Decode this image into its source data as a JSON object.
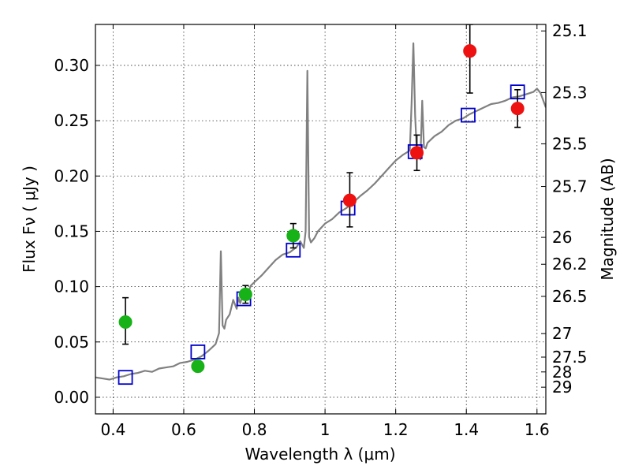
{
  "chart_data": {
    "type": "scatter",
    "title": "",
    "xlabel": "Wavelength  λ (μm)",
    "ylabel": "Flux  Fν  ( μJy )",
    "y2label": "Magnitude (AB)",
    "xlim": [
      0.35,
      1.625
    ],
    "ylim": [
      -0.015,
      0.337
    ],
    "grid": true,
    "xticks": [
      0.4,
      0.6,
      0.8,
      1.0,
      1.2,
      1.4,
      1.6
    ],
    "xtick_labels": [
      "0.4",
      "0.6",
      "0.8",
      "1",
      "1.2",
      "1.4",
      "1.6"
    ],
    "yticks": [
      0.0,
      0.05,
      0.1,
      0.15,
      0.2,
      0.25,
      0.3
    ],
    "ytick_labels": [
      "0.00",
      "0.05",
      "0.10",
      "0.15",
      "0.20",
      "0.25",
      "0.30"
    ],
    "mag_ticks": [
      25.1,
      25.3,
      25.5,
      25.7,
      26,
      26.2,
      26.5,
      27,
      27.5,
      28,
      29
    ],
    "mag_tick_labels": [
      "25.1",
      "25.3",
      "25.5",
      "25.7",
      "26",
      "26.2",
      "26.5",
      "27",
      "27.5",
      "28",
      "29"
    ],
    "colors": {
      "model_line": "#808080",
      "model_points": "#0000cc",
      "optical_obs": "#17b217",
      "nir_obs": "#ee1111",
      "errorbar": "#000000"
    },
    "series": [
      {
        "kind": "line",
        "x": [
          0.35,
          0.37,
          0.39,
          0.41,
          0.43,
          0.45,
          0.47,
          0.49,
          0.51,
          0.53,
          0.55,
          0.57,
          0.59,
          0.61,
          0.63,
          0.65,
          0.67,
          0.69,
          0.7,
          0.705,
          0.71,
          0.715,
          0.72,
          0.73,
          0.74,
          0.75,
          0.755,
          0.76,
          0.77,
          0.78,
          0.79,
          0.8,
          0.82,
          0.84,
          0.86,
          0.88,
          0.9,
          0.92,
          0.93,
          0.94,
          0.945,
          0.95,
          0.955,
          0.96,
          0.97,
          0.98,
          1.0,
          1.02,
          1.04,
          1.06,
          1.08,
          1.1,
          1.12,
          1.14,
          1.16,
          1.18,
          1.2,
          1.22,
          1.24,
          1.245,
          1.25,
          1.255,
          1.26,
          1.27,
          1.275,
          1.28,
          1.285,
          1.29,
          1.31,
          1.33,
          1.35,
          1.37,
          1.39,
          1.41,
          1.43,
          1.45,
          1.47,
          1.49,
          1.51,
          1.53,
          1.55,
          1.57,
          1.59,
          1.6,
          1.61,
          1.625
        ],
        "y": [
          0.018,
          0.017,
          0.016,
          0.018,
          0.019,
          0.021,
          0.022,
          0.024,
          0.023,
          0.026,
          0.027,
          0.028,
          0.031,
          0.032,
          0.034,
          0.037,
          0.042,
          0.048,
          0.058,
          0.132,
          0.065,
          0.062,
          0.07,
          0.075,
          0.088,
          0.08,
          0.09,
          0.085,
          0.096,
          0.093,
          0.101,
          0.104,
          0.11,
          0.117,
          0.124,
          0.129,
          0.131,
          0.136,
          0.141,
          0.135,
          0.15,
          0.295,
          0.145,
          0.14,
          0.144,
          0.15,
          0.157,
          0.161,
          0.167,
          0.171,
          0.176,
          0.182,
          0.187,
          0.193,
          0.2,
          0.207,
          0.214,
          0.219,
          0.223,
          0.265,
          0.32,
          0.255,
          0.221,
          0.215,
          0.268,
          0.226,
          0.225,
          0.23,
          0.236,
          0.24,
          0.246,
          0.25,
          0.252,
          0.256,
          0.259,
          0.262,
          0.265,
          0.266,
          0.268,
          0.271,
          0.272,
          0.274,
          0.276,
          0.279,
          0.275,
          0.262
        ]
      },
      {
        "kind": "model_points",
        "x": [
          0.435,
          0.64,
          0.77,
          0.91,
          1.065,
          1.255,
          1.405,
          1.545
        ],
        "y": [
          0.018,
          0.041,
          0.089,
          0.133,
          0.171,
          0.222,
          0.255,
          0.276
        ]
      },
      {
        "kind": "optical_obs",
        "x": [
          0.435,
          0.64,
          0.775,
          0.91
        ],
        "y": [
          0.068,
          0.028,
          0.093,
          0.146
        ],
        "err_lo": [
          0.02,
          0.005,
          0.008,
          0.011
        ],
        "err_hi": [
          0.022,
          0.005,
          0.008,
          0.011
        ]
      },
      {
        "kind": "nir_obs",
        "x": [
          1.07,
          1.26,
          1.41,
          1.545
        ],
        "y": [
          0.178,
          0.221,
          0.313,
          0.261
        ],
        "err_lo": [
          0.024,
          0.016,
          0.038,
          0.017
        ],
        "err_hi": [
          0.025,
          0.016,
          0.024,
          0.017
        ]
      }
    ]
  }
}
